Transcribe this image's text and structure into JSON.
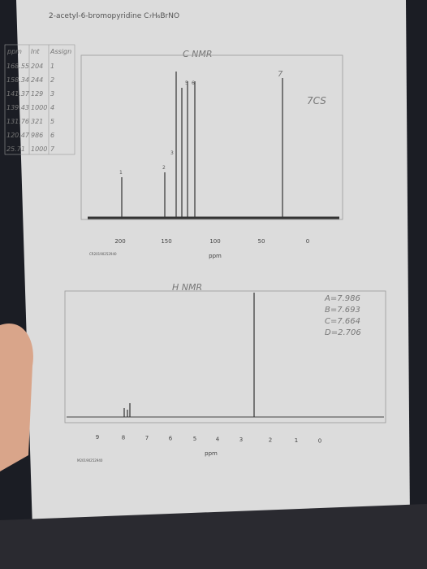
{
  "title": "2-acetyl-6-bromopyridine C₇H₆BrNO",
  "carbon": {
    "label": "C NMR",
    "note": "7CS",
    "table": {
      "header": [
        "ppm",
        "Int",
        "Assign"
      ],
      "rows": [
        [
          "168.55",
          "204",
          "1"
        ],
        [
          "158.34",
          "244",
          "2"
        ],
        [
          "141.37",
          "129",
          "3"
        ],
        [
          "139.43",
          "1000",
          "4"
        ],
        [
          "131.76",
          "321",
          "5"
        ],
        [
          "120.47",
          "986",
          "6"
        ],
        [
          "25.71",
          "1000",
          "7"
        ]
      ]
    },
    "peak_labels": [
      "1",
      "2",
      "3",
      "5",
      "6",
      "7"
    ],
    "ticks": [
      "200",
      "150",
      "100",
      "50",
      "0"
    ],
    "axis_label": "ppm",
    "code": "CR20190252940"
  },
  "proton": {
    "label": "H NMR",
    "ticks": [
      "9",
      "8",
      "7",
      "6",
      "5",
      "4",
      "3",
      "2",
      "1",
      "0"
    ],
    "axis_label": "ppm",
    "code": "M20190252940",
    "notes": [
      "A=7.986",
      "B=7.693",
      "C=7.664",
      "D=2.706"
    ]
  }
}
